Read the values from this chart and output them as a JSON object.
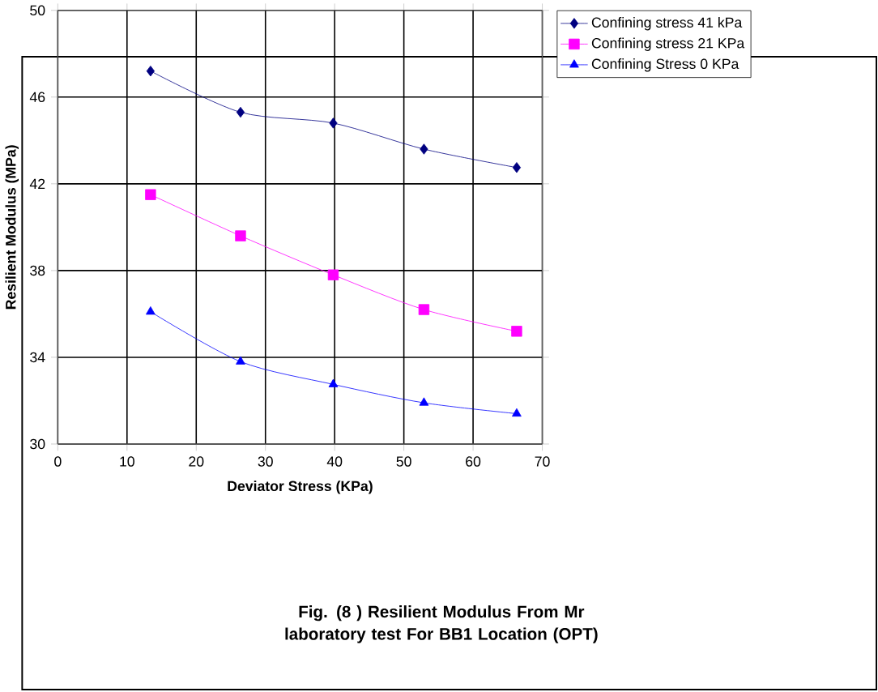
{
  "chart_data": {
    "type": "line",
    "title": "Fig. (8 ) Resilient Modulus From Mr laboratory test For BB1 Location (OPT)",
    "xlabel": "Deviator Stress (KPa)",
    "ylabel": "Resilient Modulus (MPa)",
    "x": [
      13.4,
      26.4,
      39.8,
      52.9,
      66.3
    ],
    "series": [
      {
        "name": "Confining stress 41 kPa",
        "color": "#000080",
        "marker": "diamond",
        "values": [
          47.2,
          45.3,
          44.8,
          43.6,
          42.75
        ]
      },
      {
        "name": "Confining stress 21 KPa",
        "color": "#ff00ff",
        "marker": "square",
        "values": [
          41.5,
          39.6,
          37.8,
          36.2,
          35.2
        ]
      },
      {
        "name": "Confining Stress 0 KPa",
        "color": "#0000ff",
        "marker": "triangle",
        "values": [
          36.1,
          33.8,
          32.75,
          31.9,
          31.4
        ]
      }
    ],
    "xlim": [
      0,
      70
    ],
    "xticks": [
      0,
      10,
      20,
      30,
      40,
      50,
      60,
      70
    ],
    "ylim": [
      30,
      50
    ],
    "yticks": [
      30,
      34,
      38,
      42,
      46,
      50
    ],
    "grid": true,
    "legend": "top right"
  }
}
